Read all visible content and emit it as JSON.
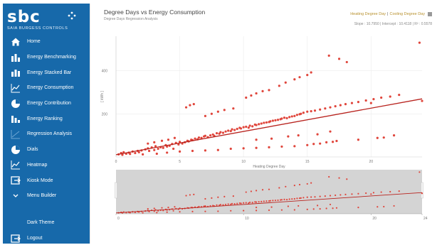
{
  "sidebar": {
    "logo_text": "sbc",
    "logo_sub": "SAIA BURGESS CONTROLS",
    "items": [
      {
        "label": "Home",
        "icon": "home-icon"
      },
      {
        "label": "Energy Benchmarking",
        "icon": "bar-chart-icon"
      },
      {
        "label": "Energy Stacked Bar",
        "icon": "stacked-bar-icon"
      },
      {
        "label": "Energy Consumption",
        "icon": "line-chart-icon"
      },
      {
        "label": "Energy Contribution",
        "icon": "pie-chart-icon"
      },
      {
        "label": "Energy Ranking",
        "icon": "ranking-bar-icon"
      },
      {
        "label": "Regression Analysis",
        "icon": "regression-icon"
      },
      {
        "label": "Dials",
        "icon": "dial-icon"
      },
      {
        "label": "Heatmap",
        "icon": "heatmap-icon"
      },
      {
        "label": "Kiosk Mode",
        "icon": "kiosk-icon"
      },
      {
        "label": "Menu Builder",
        "icon": "chevron-down-icon"
      }
    ],
    "theme_label": "Dark Theme",
    "logout_label": "Logout",
    "colors": {
      "background": "#1769aa",
      "text": "#ffffff"
    }
  },
  "header": {
    "title": "Degree Days vs Energy Consumption",
    "subtitle": "Degree Days Regression Analysis",
    "links": [
      "Heating Degree Day",
      "Cooling Degree Day"
    ],
    "link_separator": "|",
    "stats": "Slope : 10.7950 | Intercept : 10.4118 | R² : 0.5578",
    "accent": "#b8912e"
  },
  "chart_data": {
    "type": "scatter",
    "xlabel": "Heating Degree Day",
    "ylabel": "[ kWh ]",
    "xlim": [
      0,
      24
    ],
    "ylim": [
      0,
      560
    ],
    "xticks": [
      0,
      5,
      10,
      15,
      20
    ],
    "yticks": [
      200,
      400
    ],
    "navigator_xticks": [
      0,
      10,
      20,
      24
    ],
    "regression": {
      "slope": 10.795,
      "intercept": 10.4118
    },
    "point_color": "#e0463c",
    "line_color": "#b8231e",
    "points": [
      [
        0.2,
        12
      ],
      [
        0.4,
        18
      ],
      [
        0.5,
        10
      ],
      [
        0.6,
        22
      ],
      [
        0.8,
        15
      ],
      [
        1,
        20
      ],
      [
        1.1,
        14
      ],
      [
        1.3,
        25
      ],
      [
        1.5,
        18
      ],
      [
        1.7,
        28
      ],
      [
        1.8,
        22
      ],
      [
        2,
        30
      ],
      [
        2.1,
        12
      ],
      [
        2.3,
        35
      ],
      [
        2.5,
        40
      ],
      [
        2.6,
        28
      ],
      [
        2.8,
        44
      ],
      [
        3,
        32
      ],
      [
        3.1,
        50
      ],
      [
        3.3,
        38
      ],
      [
        3.5,
        45
      ],
      [
        3.7,
        42
      ],
      [
        3.9,
        55
      ],
      [
        4,
        48
      ],
      [
        4.2,
        52
      ],
      [
        4.4,
        60
      ],
      [
        4.5,
        38
      ],
      [
        4.7,
        65
      ],
      [
        4.9,
        58
      ],
      [
        5,
        70
      ],
      [
        5.2,
        62
      ],
      [
        5.4,
        68
      ],
      [
        5.6,
        75
      ],
      [
        5.7,
        72
      ],
      [
        5.9,
        80
      ],
      [
        6,
        78
      ],
      [
        6.2,
        85
      ],
      [
        6.4,
        82
      ],
      [
        6.5,
        90
      ],
      [
        6.7,
        88
      ],
      [
        6.9,
        95
      ],
      [
        7,
        98
      ],
      [
        7.2,
        92
      ],
      [
        7.4,
        100
      ],
      [
        7.6,
        104
      ],
      [
        7.7,
        98
      ],
      [
        7.9,
        110
      ],
      [
        8.1,
        108
      ],
      [
        8.2,
        115
      ],
      [
        8.4,
        112
      ],
      [
        8.6,
        118
      ],
      [
        8.8,
        122
      ],
      [
        9,
        120
      ],
      [
        9.1,
        128
      ],
      [
        9.3,
        125
      ],
      [
        9.5,
        130
      ],
      [
        9.7,
        135
      ],
      [
        9.8,
        132
      ],
      [
        10,
        138
      ],
      [
        10.2,
        140
      ],
      [
        10.4,
        136
      ],
      [
        10.5,
        145
      ],
      [
        10.7,
        142
      ],
      [
        10.9,
        150
      ],
      [
        11,
        148
      ],
      [
        11.2,
        152
      ],
      [
        11.4,
        155
      ],
      [
        11.6,
        158
      ],
      [
        11.8,
        160
      ],
      [
        12,
        162
      ],
      [
        12.1,
        165
      ],
      [
        12.3,
        168
      ],
      [
        12.5,
        170
      ],
      [
        12.7,
        172
      ],
      [
        12.9,
        175
      ],
      [
        13,
        178
      ],
      [
        13.2,
        182
      ],
      [
        13.4,
        180
      ],
      [
        13.6,
        185
      ],
      [
        13.8,
        188
      ],
      [
        14,
        190
      ],
      [
        14.2,
        195
      ],
      [
        14.4,
        198
      ],
      [
        14.5,
        200
      ],
      [
        14.7,
        205
      ],
      [
        15,
        210
      ],
      [
        15.3,
        212
      ],
      [
        15.6,
        215
      ],
      [
        16,
        220
      ],
      [
        16.4,
        225
      ],
      [
        16.8,
        230
      ],
      [
        17.2,
        235
      ],
      [
        17.6,
        240
      ],
      [
        18,
        245
      ],
      [
        18.5,
        250
      ],
      [
        19,
        255
      ],
      [
        19.6,
        262
      ],
      [
        20.2,
        268
      ],
      [
        20.8,
        275
      ],
      [
        21.5,
        280
      ],
      [
        22.2,
        288
      ],
      [
        2.5,
        62
      ],
      [
        3,
        68
      ],
      [
        3.6,
        75
      ],
      [
        4.1,
        80
      ],
      [
        4.6,
        88
      ],
      [
        5.5,
        230
      ],
      [
        5.8,
        240
      ],
      [
        6.1,
        245
      ],
      [
        7,
        190
      ],
      [
        7.5,
        200
      ],
      [
        8,
        210
      ],
      [
        8.5,
        218
      ],
      [
        9.2,
        225
      ],
      [
        10.2,
        275
      ],
      [
        10.6,
        285
      ],
      [
        11,
        295
      ],
      [
        11.5,
        305
      ],
      [
        12,
        310
      ],
      [
        12.8,
        330
      ],
      [
        13.3,
        345
      ],
      [
        14,
        360
      ],
      [
        14.4,
        370
      ],
      [
        15,
        380
      ],
      [
        15.3,
        392
      ],
      [
        16.7,
        470
      ],
      [
        17.5,
        455
      ],
      [
        18.1,
        440
      ],
      [
        23.8,
        530
      ],
      [
        3.2,
        15
      ],
      [
        4,
        20
      ],
      [
        5,
        25
      ],
      [
        6,
        28
      ],
      [
        7,
        30
      ],
      [
        8,
        32
      ],
      [
        9,
        38
      ],
      [
        10,
        40
      ],
      [
        11,
        42
      ],
      [
        12,
        45
      ],
      [
        13,
        48
      ],
      [
        14,
        50
      ],
      [
        15,
        55
      ],
      [
        15.5,
        60
      ],
      [
        16,
        62
      ],
      [
        16.5,
        68
      ],
      [
        17,
        70
      ],
      [
        17.3,
        74
      ],
      [
        19,
        80
      ],
      [
        20.5,
        88
      ],
      [
        21,
        90
      ],
      [
        11,
        80
      ],
      [
        12.2,
        85
      ],
      [
        13.5,
        95
      ],
      [
        14.3,
        100
      ],
      [
        15.8,
        105
      ],
      [
        16.8,
        118
      ],
      [
        20,
        250
      ],
      [
        21.8,
        100
      ],
      [
        24,
        260
      ]
    ]
  }
}
